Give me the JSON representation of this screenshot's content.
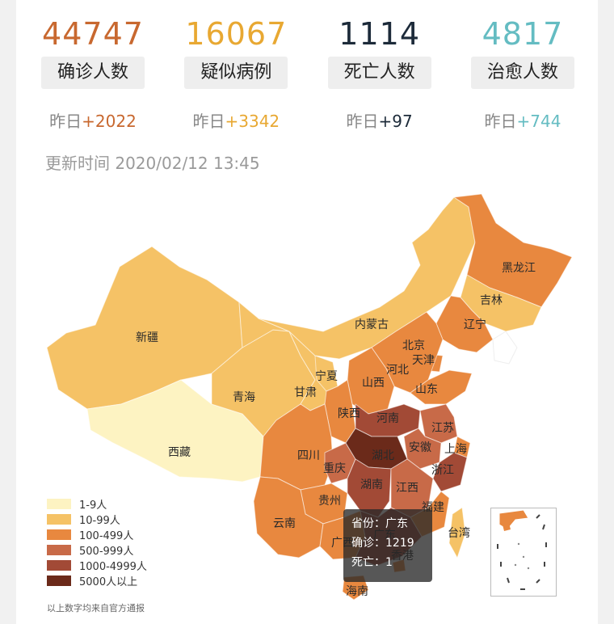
{
  "stats": [
    {
      "number": "44747",
      "label": "确诊人数",
      "delta_prefix": "昨日",
      "delta": "+2022",
      "color": "#c8682f"
    },
    {
      "number": "16067",
      "label": "疑似病例",
      "delta_prefix": "昨日",
      "delta": "+3342",
      "color": "#e8a832"
    },
    {
      "number": "1114",
      "label": "死亡人数",
      "delta_prefix": "昨日",
      "delta": "+97",
      "color": "#1d2b3a"
    },
    {
      "number": "4817",
      "label": "治愈人数",
      "delta_prefix": "昨日",
      "delta": "+744",
      "color": "#64bcc2"
    }
  ],
  "updated": "更新时间 2020/02/12 13:45",
  "legend": [
    {
      "label": "1-9人",
      "color": "#fdf3c2"
    },
    {
      "label": "10-99人",
      "color": "#f5c266"
    },
    {
      "label": "100-499人",
      "color": "#e8883f"
    },
    {
      "label": "500-999人",
      "color": "#c86a48"
    },
    {
      "label": "1000-4999人",
      "color": "#a24a36"
    },
    {
      "label": "5000人以上",
      "color": "#6b2a1a"
    }
  ],
  "provinces": [
    {
      "name": "新疆",
      "level": 1
    },
    {
      "name": "西藏",
      "level": 0
    },
    {
      "name": "青海",
      "level": 1
    },
    {
      "name": "甘肃",
      "level": 1
    },
    {
      "name": "宁夏",
      "level": 1
    },
    {
      "name": "内蒙古",
      "level": 1
    },
    {
      "name": "黑龙江",
      "level": 2
    },
    {
      "name": "吉林",
      "level": 1
    },
    {
      "name": "辽宁",
      "level": 2
    },
    {
      "name": "北京",
      "level": 2
    },
    {
      "name": "天津",
      "level": 2
    },
    {
      "name": "河北",
      "level": 2
    },
    {
      "name": "山西",
      "level": 2
    },
    {
      "name": "山东",
      "level": 2
    },
    {
      "name": "陕西",
      "level": 2
    },
    {
      "name": "河南",
      "level": 4
    },
    {
      "name": "江苏",
      "level": 3
    },
    {
      "name": "安徽",
      "level": 3
    },
    {
      "name": "上海",
      "level": 2
    },
    {
      "name": "四川",
      "level": 2
    },
    {
      "name": "重庆",
      "level": 3
    },
    {
      "name": "湖北",
      "level": 5
    },
    {
      "name": "浙江",
      "level": 4
    },
    {
      "name": "湖南",
      "level": 4
    },
    {
      "name": "江西",
      "level": 3
    },
    {
      "name": "贵州",
      "level": 2
    },
    {
      "name": "云南",
      "level": 2
    },
    {
      "name": "福建",
      "level": 2
    },
    {
      "name": "广西",
      "level": 2
    },
    {
      "name": "广东",
      "level": 4
    },
    {
      "name": "香港",
      "level": 2
    },
    {
      "name": "台湾",
      "level": 1
    },
    {
      "name": "海南",
      "level": 2
    }
  ],
  "tooltip": {
    "province_label": "省份：广东",
    "confirmed_label": "确诊：1219",
    "deaths_label": "死亡：1"
  },
  "footnote": "以上数字均来自官方通报"
}
